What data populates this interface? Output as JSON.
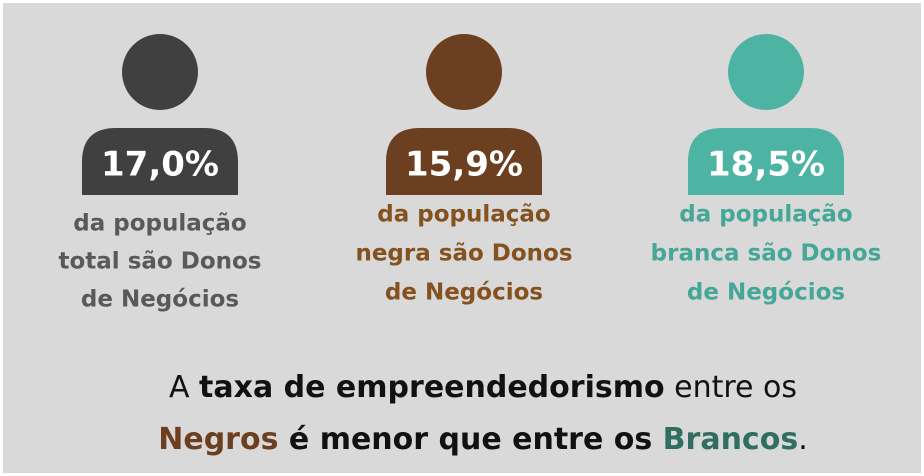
{
  "figures": [
    {
      "value": "17,0%",
      "color": "#404040",
      "caption_color": "#595959",
      "caption": [
        "da população",
        "total são Donos",
        "de Negócios"
      ]
    },
    {
      "value": "15,9%",
      "color": "#6b3f1f",
      "caption_color": "#84511f",
      "caption": [
        "da população",
        "negra são Donos",
        "de Negócios"
      ]
    },
    {
      "value": "18,5%",
      "color": "#4db3a3",
      "caption_color": "#45a797",
      "caption": [
        "da população",
        "branca são Donos",
        "de Negócios"
      ]
    }
  ],
  "footer": [
    [
      {
        "text": "A ",
        "bold": false,
        "color": "#111111"
      },
      {
        "text": "taxa de empreendedorismo",
        "bold": true,
        "color": "#111111"
      },
      {
        "text": " entre os",
        "bold": false,
        "color": "#111111"
      }
    ],
    [
      {
        "text": "Negros",
        "bold": true,
        "color": "#6b3f1f"
      },
      {
        "text": " é menor que entre os ",
        "bold": true,
        "color": "#111111"
      },
      {
        "text": "Brancos",
        "bold": true,
        "color": "#2f6e61"
      },
      {
        "text": ".",
        "bold": false,
        "color": "#111111"
      }
    ]
  ]
}
